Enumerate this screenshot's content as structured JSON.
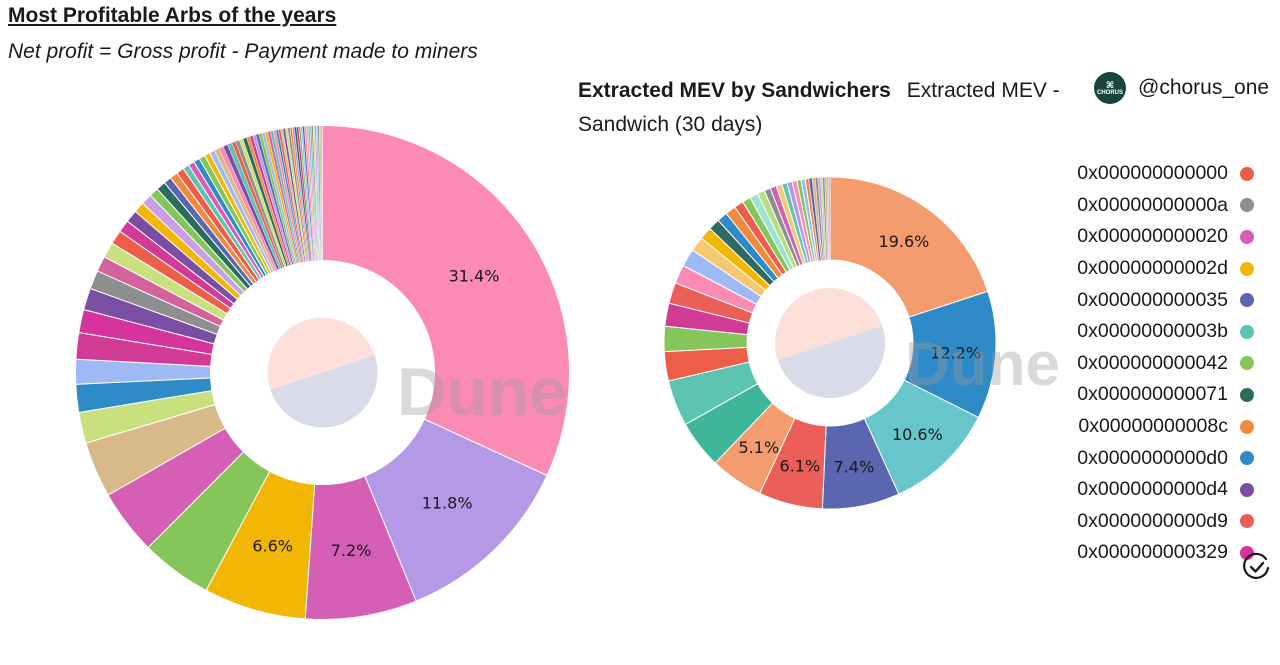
{
  "chart_data": [
    {
      "type": "pie",
      "title": "Most Profitable Arbs of the years",
      "subtitle": "Net profit = Gross profit - Payment made to miners",
      "watermark": "Dune",
      "slices": [
        {
          "value": 31.4,
          "label": "31.4%",
          "color": "#fb8ab5"
        },
        {
          "value": 11.8,
          "label": "11.8%",
          "color": "#b49ae6"
        },
        {
          "value": 7.2,
          "label": "7.2%",
          "color": "#d45fb5"
        },
        {
          "value": 6.6,
          "label": "6.6%",
          "color": "#f2b705"
        },
        {
          "value": 4.6,
          "label": "",
          "color": "#86c55a"
        },
        {
          "value": 4.2,
          "label": "",
          "color": "#d45fb5"
        },
        {
          "value": 3.6,
          "label": "",
          "color": "#d8b98a"
        },
        {
          "value": 2.0,
          "label": "",
          "color": "#c9e07e"
        },
        {
          "value": 1.8,
          "label": "",
          "color": "#2f8ac8"
        },
        {
          "value": 1.6,
          "label": "",
          "color": "#9fb9f5"
        },
        {
          "value": 1.7,
          "label": "",
          "color": "#d13b96"
        },
        {
          "value": 1.5,
          "label": "",
          "color": "#d6339c"
        },
        {
          "value": 1.4,
          "label": "",
          "color": "#7a4fa3"
        },
        {
          "value": 1.2,
          "label": "",
          "color": "#8e8e8e"
        },
        {
          "value": 1.0,
          "label": "",
          "color": "#d4629c"
        },
        {
          "value": 1.0,
          "label": "",
          "color": "#c9e07e"
        },
        {
          "value": 0.9,
          "label": "",
          "color": "#ec5e4a"
        },
        {
          "value": 0.8,
          "label": "",
          "color": "#d13b96"
        },
        {
          "value": 0.8,
          "label": "",
          "color": "#7a4fa3"
        },
        {
          "value": 0.7,
          "label": "",
          "color": "#f2b705"
        },
        {
          "value": 0.7,
          "label": "",
          "color": "#c9a0e6"
        },
        {
          "value": 0.6,
          "label": "",
          "color": "#86c55a"
        },
        {
          "value": 0.6,
          "label": "",
          "color": "#2d6b5e"
        },
        {
          "value": 0.5,
          "label": "",
          "color": "#5a66b0"
        },
        {
          "value": 0.5,
          "label": "",
          "color": "#f08a3c"
        },
        {
          "value": 0.5,
          "label": "",
          "color": "#ec5e4a"
        },
        {
          "value": 0.4,
          "label": "",
          "color": "#5cc4b0"
        },
        {
          "value": 0.4,
          "label": "",
          "color": "#d45fb5"
        },
        {
          "value": 0.4,
          "label": "",
          "color": "#2f8ac8"
        },
        {
          "value": 0.4,
          "label": "",
          "color": "#86c55a"
        },
        {
          "value": 0.35,
          "label": "",
          "color": "#f2b705"
        },
        {
          "value": 0.35,
          "label": "",
          "color": "#9fb9f5"
        },
        {
          "value": 0.3,
          "label": "",
          "color": "#d8b98a"
        },
        {
          "value": 0.3,
          "label": "",
          "color": "#fb8ab5"
        },
        {
          "value": 0.3,
          "label": "",
          "color": "#7a4fa3"
        },
        {
          "value": 0.3,
          "label": "",
          "color": "#5cc4b0"
        },
        {
          "value": 0.25,
          "label": "",
          "color": "#ec5e4a"
        },
        {
          "value": 0.25,
          "label": "",
          "color": "#8e8e8e"
        },
        {
          "value": 0.25,
          "label": "",
          "color": "#c9e07e"
        },
        {
          "value": 0.25,
          "label": "",
          "color": "#2d6b5e"
        },
        {
          "value": 0.2,
          "label": "",
          "color": "#f08a3c"
        },
        {
          "value": 0.2,
          "label": "",
          "color": "#d13b96"
        },
        {
          "value": 0.2,
          "label": "",
          "color": "#b49ae6"
        },
        {
          "value": 0.2,
          "label": "",
          "color": "#5a66b0"
        },
        {
          "value": 0.2,
          "label": "",
          "color": "#86c55a"
        },
        {
          "value": 0.2,
          "label": "",
          "color": "#9fb9f5"
        },
        {
          "value": 0.18,
          "label": "",
          "color": "#f2b705"
        },
        {
          "value": 0.18,
          "label": "",
          "color": "#d45fb5"
        },
        {
          "value": 0.18,
          "label": "",
          "color": "#5cc4b0"
        },
        {
          "value": 0.18,
          "label": "",
          "color": "#fb8ab5"
        },
        {
          "value": 0.15,
          "label": "",
          "color": "#2f8ac8"
        },
        {
          "value": 0.15,
          "label": "",
          "color": "#ec5e4a"
        },
        {
          "value": 0.15,
          "label": "",
          "color": "#d8b98a"
        },
        {
          "value": 0.15,
          "label": "",
          "color": "#7a4fa3"
        },
        {
          "value": 0.15,
          "label": "",
          "color": "#c9e07e"
        },
        {
          "value": 0.15,
          "label": "",
          "color": "#8e8e8e"
        },
        {
          "value": 0.14,
          "label": "",
          "color": "#f08a3c"
        },
        {
          "value": 0.14,
          "label": "",
          "color": "#b49ae6"
        },
        {
          "value": 0.14,
          "label": "",
          "color": "#2d6b5e"
        },
        {
          "value": 0.14,
          "label": "",
          "color": "#d13b96"
        },
        {
          "value": 0.12,
          "label": "",
          "color": "#86c55a"
        },
        {
          "value": 0.12,
          "label": "",
          "color": "#9fb9f5"
        },
        {
          "value": 0.12,
          "label": "",
          "color": "#5a66b0"
        },
        {
          "value": 0.12,
          "label": "",
          "color": "#fb8ab5"
        },
        {
          "value": 0.12,
          "label": "",
          "color": "#d8b98a"
        },
        {
          "value": 0.12,
          "label": "",
          "color": "#c9a0e6"
        },
        {
          "value": 0.1,
          "label": "",
          "color": "#5cc4b0"
        },
        {
          "value": 0.1,
          "label": "",
          "color": "#8e8e8e"
        },
        {
          "value": 0.1,
          "label": "",
          "color": "#c9e07e"
        },
        {
          "value": 0.1,
          "label": "",
          "color": "#b49ae6"
        },
        {
          "value": 0.1,
          "label": "",
          "color": "#9fb9f5"
        },
        {
          "value": 0.1,
          "label": "",
          "color": "#8e8e8e"
        },
        {
          "value": 0.1,
          "label": "",
          "color": "#d8b98a"
        },
        {
          "value": 0.1,
          "label": "",
          "color": "#c9a0e6"
        }
      ]
    },
    {
      "type": "pie",
      "title": "Extracted MEV by Sandwichers",
      "subtitle": "Extracted MEV - Sandwich (30 days)",
      "watermark": "Dune",
      "slices": [
        {
          "value": 19.6,
          "label": "19.6%",
          "color": "#f59c6e"
        },
        {
          "value": 12.2,
          "label": "12.2%",
          "color": "#2f8ac8"
        },
        {
          "value": 10.6,
          "label": "10.6%",
          "color": "#66c6cc"
        },
        {
          "value": 7.4,
          "label": "7.4%",
          "color": "#5a66b0"
        },
        {
          "value": 6.1,
          "label": "6.1%",
          "color": "#ec5e58"
        },
        {
          "value": 5.1,
          "label": "5.1%",
          "color": "#f59c6e"
        },
        {
          "value": 4.6,
          "label": "",
          "color": "#3fb59a"
        },
        {
          "value": 4.4,
          "label": "",
          "color": "#5cc4b0"
        },
        {
          "value": 2.8,
          "label": "",
          "color": "#ec5e4a"
        },
        {
          "value": 2.4,
          "label": "",
          "color": "#86c55a"
        },
        {
          "value": 2.2,
          "label": "",
          "color": "#d13b96"
        },
        {
          "value": 2.0,
          "label": "",
          "color": "#ec5e58"
        },
        {
          "value": 1.8,
          "label": "",
          "color": "#fb8ab5"
        },
        {
          "value": 1.7,
          "label": "",
          "color": "#9fb9f5"
        },
        {
          "value": 1.4,
          "label": "",
          "color": "#f6c871"
        },
        {
          "value": 1.2,
          "label": "",
          "color": "#f2b705"
        },
        {
          "value": 1.1,
          "label": "",
          "color": "#2d6b5e"
        },
        {
          "value": 1.0,
          "label": "",
          "color": "#2f8ac8"
        },
        {
          "value": 1.0,
          "label": "",
          "color": "#f08a3c"
        },
        {
          "value": 0.9,
          "label": "",
          "color": "#ec5e4a"
        },
        {
          "value": 0.8,
          "label": "",
          "color": "#86c55a"
        },
        {
          "value": 0.8,
          "label": "",
          "color": "#9de2d3"
        },
        {
          "value": 0.7,
          "label": "",
          "color": "#b6df7f"
        },
        {
          "value": 0.6,
          "label": "",
          "color": "#8e8e8e"
        },
        {
          "value": 0.6,
          "label": "",
          "color": "#d45fb5"
        },
        {
          "value": 0.55,
          "label": "",
          "color": "#f6c871"
        },
        {
          "value": 0.5,
          "label": "",
          "color": "#5cc4b0"
        },
        {
          "value": 0.5,
          "label": "",
          "color": "#b49ae6"
        },
        {
          "value": 0.45,
          "label": "",
          "color": "#fb8ab5"
        },
        {
          "value": 0.4,
          "label": "",
          "color": "#86c55a"
        },
        {
          "value": 0.4,
          "label": "",
          "color": "#9fb9f5"
        },
        {
          "value": 0.35,
          "label": "",
          "color": "#f08a3c"
        },
        {
          "value": 0.3,
          "label": "",
          "color": "#5a66b0"
        },
        {
          "value": 0.3,
          "label": "",
          "color": "#d8b98a"
        },
        {
          "value": 0.25,
          "label": "",
          "color": "#8e8e8e"
        },
        {
          "value": 0.25,
          "label": "",
          "color": "#c9a0e6"
        },
        {
          "value": 0.2,
          "label": "",
          "color": "#b6df7f"
        },
        {
          "value": 0.2,
          "label": "",
          "color": "#8e8e8e"
        },
        {
          "value": 0.2,
          "label": "",
          "color": "#d8b98a"
        },
        {
          "value": 0.15,
          "label": "",
          "color": "#c9a0e6"
        },
        {
          "value": 0.15,
          "label": "",
          "color": "#9fb9f5"
        }
      ],
      "legend_position": "right",
      "legend": [
        {
          "label": "0x000000000000",
          "color": "#ec5e4a"
        },
        {
          "label": "0x00000000000a",
          "color": "#8e8e8e"
        },
        {
          "label": "0x000000000020",
          "color": "#d45fb5"
        },
        {
          "label": "0x00000000002d",
          "color": "#f2b705"
        },
        {
          "label": "0x000000000035",
          "color": "#5a66b0"
        },
        {
          "label": "0x00000000003b",
          "color": "#5cc4b0"
        },
        {
          "label": "0x000000000042",
          "color": "#86c55a"
        },
        {
          "label": "0x000000000071",
          "color": "#2d6b5e"
        },
        {
          "label": "0x00000000008c",
          "color": "#f08a3c"
        },
        {
          "label": "0x0000000000d0",
          "color": "#2f8ac8"
        },
        {
          "label": "0x0000000000d4",
          "color": "#7a4fa3"
        },
        {
          "label": "0x0000000000d9",
          "color": "#ec5e58"
        },
        {
          "label": "0x000000000329",
          "color": "#d6339c"
        }
      ]
    }
  ],
  "brand": {
    "handle": "@chorus_one",
    "logo_text": "CHORUS",
    "logo_icon": "chorus-logo-icon"
  },
  "icons": {
    "legend_more": "check-circle-icon"
  },
  "center_disc_colors": {
    "top": "#fde0da",
    "bottom": "#d9dbe8"
  }
}
